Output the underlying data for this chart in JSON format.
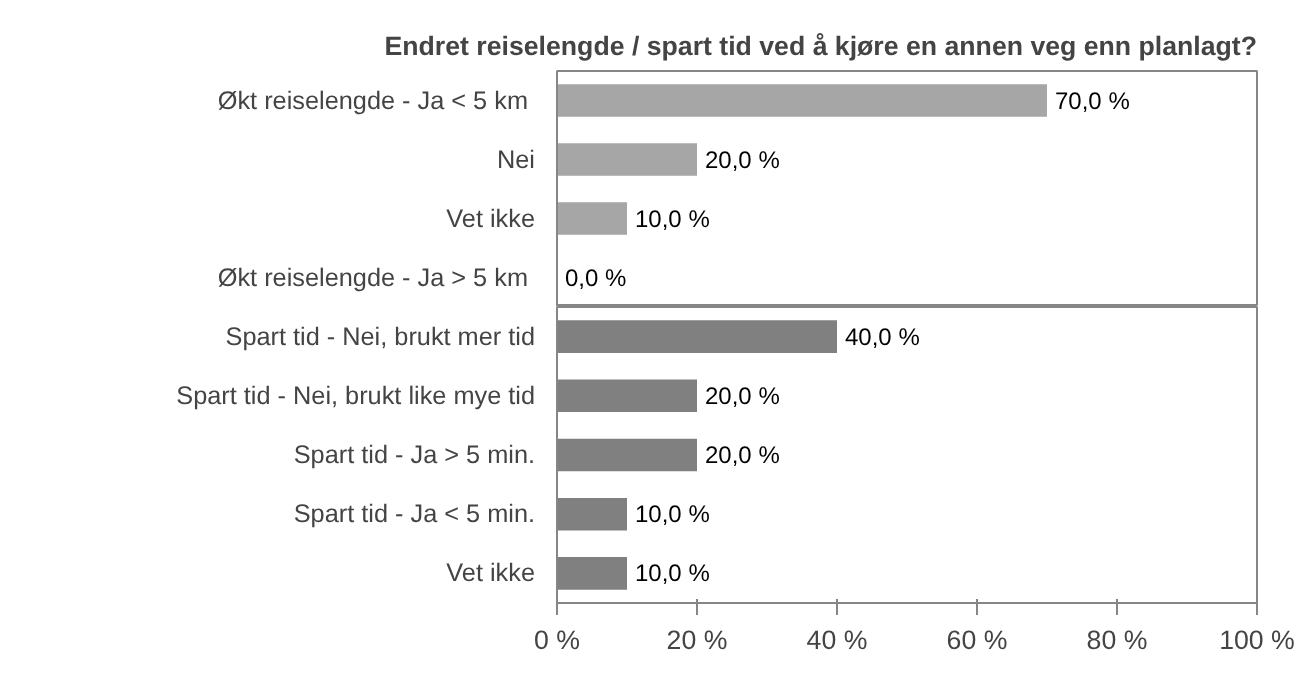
{
  "chart_data": [
    {
      "type": "bar",
      "orientation": "horizontal",
      "title": "Endret reiselengde / spart tid ved å kjøre en annen veg enn planlagt?",
      "categories": [
        "Økt reiselengde  - Ja < 5 km",
        "Nei",
        "Vet ikke",
        "Økt reiselengde  - Ja > 5 km"
      ],
      "values": [
        70,
        20,
        10,
        0
      ],
      "color": "#a6a6a6",
      "value_labels": [
        "70,0 %",
        "20,0 %",
        "10,0 %",
        "0,0 %"
      ],
      "xlim": [
        0,
        100
      ],
      "tick_labels": "y",
      "grid": false
    },
    {
      "type": "bar",
      "orientation": "horizontal",
      "categories": [
        "Spart tid - Nei, brukt mer tid",
        "Spart tid - Nei, brukt like mye tid",
        "Spart tid - Ja > 5 min.",
        "Spart tid - Ja < 5 min.",
        "Vet ikke"
      ],
      "values": [
        40,
        20,
        20,
        10,
        10
      ],
      "color": "#808080",
      "value_labels": [
        "40,0 %",
        "20,0 %",
        "20,0 %",
        "10,0 %",
        "10,0 %"
      ],
      "xlim": [
        0,
        100
      ],
      "xticks": [
        {
          "value": 0,
          "label": "0 %"
        },
        {
          "value": 20,
          "label": "20 %"
        },
        {
          "value": 40,
          "label": "40 %"
        },
        {
          "value": 60,
          "label": "60 %"
        },
        {
          "value": 80,
          "label": "80 %"
        },
        {
          "value": 100,
          "label": "100 %"
        }
      ],
      "grid": false
    }
  ]
}
